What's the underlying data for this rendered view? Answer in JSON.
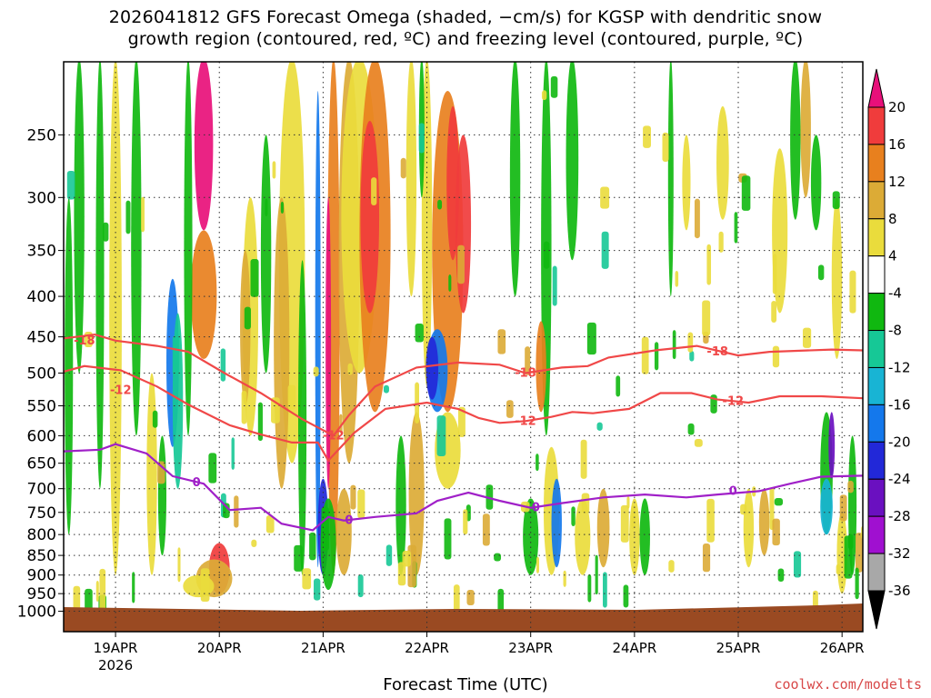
{
  "title_line1": "2026041812 GFS Forecast Omega (shaded, −cm/s) for KGSP with dendritic snow",
  "title_line2": "growth region (contoured, red, ºC) and freezing level (contoured, purple, ºC)",
  "xlabel": "Forecast Time (UTC)",
  "credit": "coolwx.com/modelts",
  "chart_data": {
    "type": "heatmap",
    "x_ticks": [
      "19APR",
      "20APR",
      "21APR",
      "22APR",
      "23APR",
      "24APR",
      "25APR",
      "26APR"
    ],
    "x_year_label": "2026",
    "x_range_days": [
      0,
      7.7
    ],
    "y_ticks": [
      250,
      300,
      350,
      400,
      450,
      500,
      550,
      600,
      650,
      700,
      750,
      800,
      850,
      900,
      950,
      1000
    ],
    "y_range_hpa": [
      200,
      1050
    ],
    "y_scale": "log-pressure",
    "grid": "dotted",
    "colorbar": {
      "labels": [
        "20",
        "16",
        "12",
        "8",
        "4",
        "-4",
        "-8",
        "-12",
        "-16",
        "-20",
        "-24",
        "-28",
        "-32",
        "-36"
      ],
      "colors": [
        "#e8107a",
        "#f03c3c",
        "#e8801e",
        "#dcab36",
        "#eadc3c",
        "#ffffff",
        "#10b810",
        "#16c896",
        "#18b4d4",
        "#1478ec",
        "#2228d8",
        "#6a10c0",
        "#a010d0",
        "#a8a8a8",
        "#000000"
      ]
    },
    "contours": [
      {
        "label": "-18",
        "color": "#f04848",
        "points": [
          [
            0,
            452
          ],
          [
            0.3,
            447
          ],
          [
            0.5,
            455
          ],
          [
            0.9,
            462
          ],
          [
            1.2,
            470
          ],
          [
            1.55,
            500
          ],
          [
            1.9,
            530
          ],
          [
            2.3,
            572
          ],
          [
            2.6,
            600
          ],
          [
            2.75,
            565
          ],
          [
            3.0,
            520
          ],
          [
            3.4,
            492
          ],
          [
            3.8,
            485
          ],
          [
            4.2,
            488
          ],
          [
            4.45,
            500
          ],
          [
            4.8,
            492
          ],
          [
            5.05,
            490
          ],
          [
            5.25,
            478
          ],
          [
            5.7,
            468
          ],
          [
            6.1,
            462
          ],
          [
            6.5,
            475
          ],
          [
            6.8,
            470
          ],
          [
            7.4,
            467
          ],
          [
            7.7,
            468
          ]
        ]
      },
      {
        "label": "-12",
        "color": "#f04848",
        "points": [
          [
            0,
            498
          ],
          [
            0.2,
            490
          ],
          [
            0.55,
            496
          ],
          [
            0.9,
            520
          ],
          [
            1.2,
            548
          ],
          [
            1.6,
            582
          ],
          [
            1.9,
            598
          ],
          [
            2.2,
            612
          ],
          [
            2.45,
            612
          ],
          [
            2.55,
            645
          ],
          [
            2.8,
            595
          ],
          [
            3.1,
            555
          ],
          [
            3.5,
            545
          ],
          [
            3.8,
            555
          ],
          [
            4.0,
            570
          ],
          [
            4.2,
            578
          ],
          [
            4.45,
            575
          ],
          [
            4.7,
            568
          ],
          [
            4.9,
            560
          ],
          [
            5.1,
            562
          ],
          [
            5.45,
            555
          ],
          [
            5.75,
            530
          ],
          [
            6.05,
            530
          ],
          [
            6.3,
            540
          ],
          [
            6.6,
            545
          ],
          [
            6.9,
            535
          ],
          [
            7.3,
            535
          ],
          [
            7.7,
            538
          ]
        ]
      },
      {
        "label": "0",
        "color": "#a020c8",
        "points": [
          [
            0,
            628
          ],
          [
            0.35,
            625
          ],
          [
            0.5,
            615
          ],
          [
            0.8,
            632
          ],
          [
            1.05,
            675
          ],
          [
            1.35,
            690
          ],
          [
            1.6,
            745
          ],
          [
            1.9,
            740
          ],
          [
            2.1,
            775
          ],
          [
            2.4,
            790
          ],
          [
            2.55,
            760
          ],
          [
            2.7,
            768
          ],
          [
            3.0,
            760
          ],
          [
            3.4,
            752
          ],
          [
            3.6,
            725
          ],
          [
            3.9,
            708
          ],
          [
            4.2,
            725
          ],
          [
            4.5,
            740
          ],
          [
            4.8,
            730
          ],
          [
            5.2,
            718
          ],
          [
            5.6,
            712
          ],
          [
            6.0,
            718
          ],
          [
            6.3,
            712
          ],
          [
            6.7,
            705
          ],
          [
            7.0,
            690
          ],
          [
            7.3,
            676
          ],
          [
            7.7,
            674
          ]
        ]
      }
    ],
    "label_positions": [
      {
        "text": "-18",
        "x": 0.2,
        "p": 455
      },
      {
        "text": "-12",
        "x": 0.55,
        "p": 526
      },
      {
        "text": "-12",
        "x": 2.6,
        "p": 600
      },
      {
        "text": "0",
        "x": 1.28,
        "p": 688
      },
      {
        "text": "0",
        "x": 2.75,
        "p": 768
      },
      {
        "text": "-18",
        "x": 4.45,
        "p": 500
      },
      {
        "text": "-12",
        "x": 4.45,
        "p": 575
      },
      {
        "text": "0",
        "x": 4.55,
        "p": 740
      },
      {
        "text": "-18",
        "x": 6.3,
        "p": 470
      },
      {
        "text": "-12",
        "x": 6.45,
        "p": 543
      },
      {
        "text": "0",
        "x": 6.45,
        "p": 705
      }
    ]
  }
}
